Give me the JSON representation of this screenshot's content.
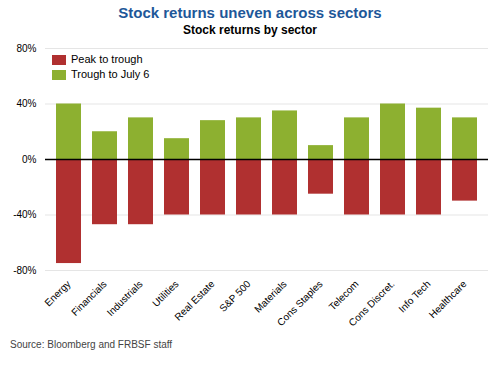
{
  "chart_data": {
    "type": "bar",
    "title": "Stock returns uneven across sectors",
    "subtitle": "Stock returns by sector",
    "source": "Source: Bloomberg and FRBSF staff",
    "categories": [
      "Energy",
      "Financials",
      "Industrials",
      "Utilities",
      "Real Estate",
      "S&P 500",
      "Materials",
      "Cons Staples",
      "Telecom",
      "Cons Discret.",
      "Info Tech",
      "Healthcare"
    ],
    "series": [
      {
        "name": "Peak to trough",
        "color": "#b03030",
        "values": [
          -75,
          -47,
          -47,
          -40,
          -40,
          -40,
          -40,
          -25,
          -40,
          -40,
          -40,
          -30
        ]
      },
      {
        "name": "Trough to July 6",
        "color": "#8db030",
        "values": [
          40,
          20,
          30,
          15,
          28,
          30,
          35,
          10,
          30,
          40,
          37,
          30
        ]
      }
    ],
    "ylim": [
      -80,
      80
    ],
    "yticks": [
      {
        "value": -80,
        "label": "-80%"
      },
      {
        "value": -40,
        "label": "-40%"
      },
      {
        "value": 0,
        "label": "0%"
      },
      {
        "value": 40,
        "label": "40%"
      },
      {
        "value": 80,
        "label": "80%"
      }
    ],
    "grid": true,
    "legend": "upper left"
  }
}
